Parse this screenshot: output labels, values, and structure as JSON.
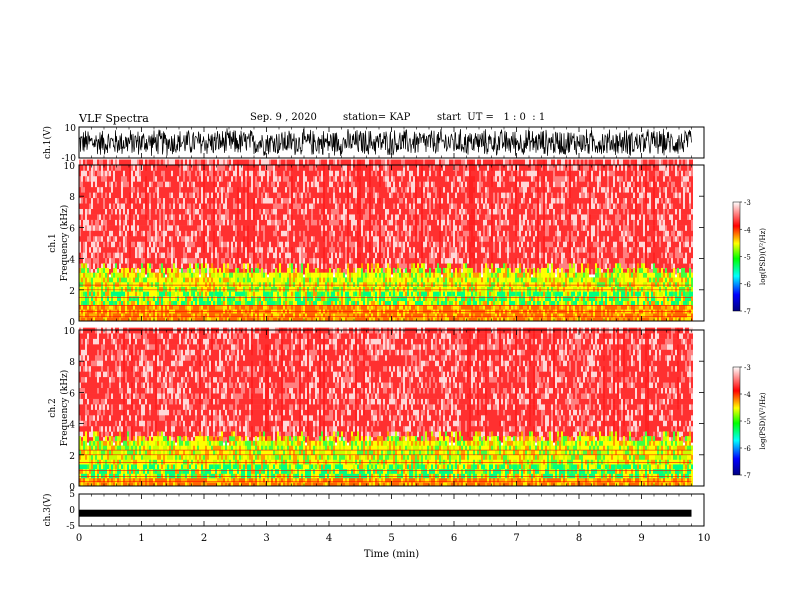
{
  "header": {
    "title": "VLF Spectra",
    "date": "Sep. 9 , 2020",
    "station": "station= KAP",
    "start": "start  UT =   1 : 0  : 1"
  },
  "chart_data": [
    {
      "type": "line",
      "name": "ch1-waveform",
      "ylabel": "ch.1(V)",
      "ylim": [
        -10,
        10
      ],
      "yticks": [
        "10",
        "-10"
      ],
      "xlim": [
        0,
        10
      ],
      "data_end_min": 9.8,
      "description_of_data": "dense noise waveform spanning full range"
    },
    {
      "type": "heatmap",
      "name": "ch1-spectrogram",
      "ylabel_line1": "ch.1",
      "ylabel_line2": "Frequency  (kHz)",
      "ylim": [
        0,
        10
      ],
      "yticks": [
        "0",
        "2",
        "4",
        "6",
        "8",
        "10"
      ],
      "xlim": [
        0,
        10
      ],
      "data_end_min": 9.8,
      "colorbar": {
        "label": "log(PSD)(V²/Hz)",
        "range": [
          -7,
          -3
        ],
        "ticks": [
          "-3",
          "-4",
          "-5",
          "-6",
          "-7"
        ]
      },
      "colorbar_colors": [
        "#000080",
        "#0000ff",
        "#00ffff",
        "#00ff00",
        "#ffff00",
        "#ff0000",
        "#ffffff"
      ],
      "band_profile_khz": [
        1.0,
        3.0
      ]
    },
    {
      "type": "heatmap",
      "name": "ch2-spectrogram",
      "ylabel_line1": "ch.2",
      "ylabel_line2": "Frequency  (kHz)",
      "ylim": [
        0,
        10
      ],
      "yticks": [
        "0",
        "2",
        "4",
        "6",
        "8",
        "10"
      ],
      "xlim": [
        0,
        10
      ],
      "data_end_min": 9.8,
      "colorbar": {
        "label": "log(PSD)(V²/Hz)",
        "range": [
          -7,
          -3
        ],
        "ticks": [
          "-3",
          "-4",
          "-5",
          "-6",
          "-7"
        ]
      },
      "colorbar_colors": [
        "#000080",
        "#0000ff",
        "#00ffff",
        "#00ff00",
        "#ffff00",
        "#ff0000",
        "#ffffff"
      ],
      "band_profile_khz": [
        0.5,
        2.8
      ]
    },
    {
      "type": "line",
      "name": "ch3-waveform",
      "ylabel": "ch.3(V)",
      "ylim": [
        -5,
        5
      ],
      "yticks": [
        "5",
        "0",
        "-5"
      ],
      "xlim": [
        0,
        10
      ],
      "data_end_min": 9.8,
      "level_v": -1.0
    }
  ],
  "xaxis": {
    "label": "Time  (min)",
    "ticks": [
      "0",
      "1",
      "2",
      "3",
      "4",
      "5",
      "6",
      "7",
      "8",
      "9",
      "10"
    ]
  }
}
